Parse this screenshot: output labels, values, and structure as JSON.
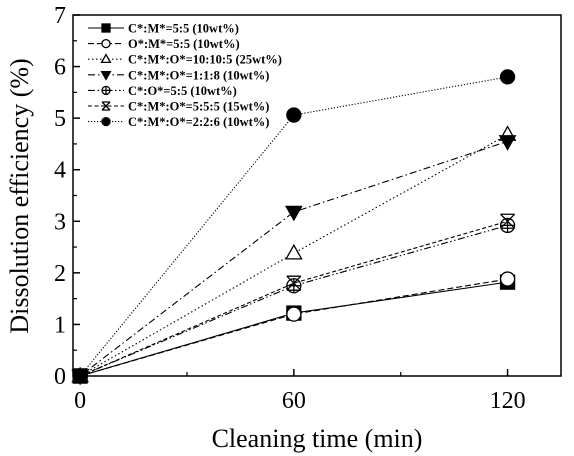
{
  "chart_data": {
    "type": "line",
    "title": "",
    "xlabel": "Cleaning time (min)",
    "ylabel": "Dissolution efficiency (%)",
    "xlim": [
      -2,
      135
    ],
    "ylim": [
      0,
      7
    ],
    "xticks": [
      0,
      60,
      120
    ],
    "yticks": [
      0,
      1,
      2,
      3,
      4,
      5,
      6,
      7
    ],
    "grid": false,
    "legend_position": "top-left",
    "x": [
      0,
      60,
      120
    ],
    "series": [
      {
        "name": "C*:M*=5:5 (10wt%)",
        "marker": "square-filled",
        "dash": "solid",
        "values": [
          0,
          1.22,
          1.82
        ]
      },
      {
        "name": "O*:M*=5:5 (10wt%)",
        "marker": "circle-open",
        "dash": "dash",
        "values": [
          0,
          1.2,
          1.88
        ]
      },
      {
        "name": "C*:M*:O*=10:10:5 (25wt%)",
        "marker": "triangle-up-open",
        "dash": "dot",
        "values": [
          0,
          2.38,
          4.68
        ]
      },
      {
        "name": "C*:M*:O*=1:1:8 (10wt%)",
        "marker": "triangle-down-filled",
        "dash": "dashdot",
        "values": [
          0,
          3.18,
          4.55
        ]
      },
      {
        "name": "C*:O*=5:5 (10wt%)",
        "marker": "circle-cross",
        "dash": "dashdotdot",
        "values": [
          0,
          1.75,
          2.92
        ]
      },
      {
        "name": "C*:M*:O*=5:5:5 (15wt%)",
        "marker": "x-square",
        "dash": "shortdash",
        "values": [
          0,
          1.8,
          3.0
        ]
      },
      {
        "name": "C*:M*:O*=2:2:6 (10wt%)",
        "marker": "circle-filled",
        "dash": "shortdot",
        "values": [
          0,
          5.06,
          5.8
        ]
      }
    ]
  }
}
